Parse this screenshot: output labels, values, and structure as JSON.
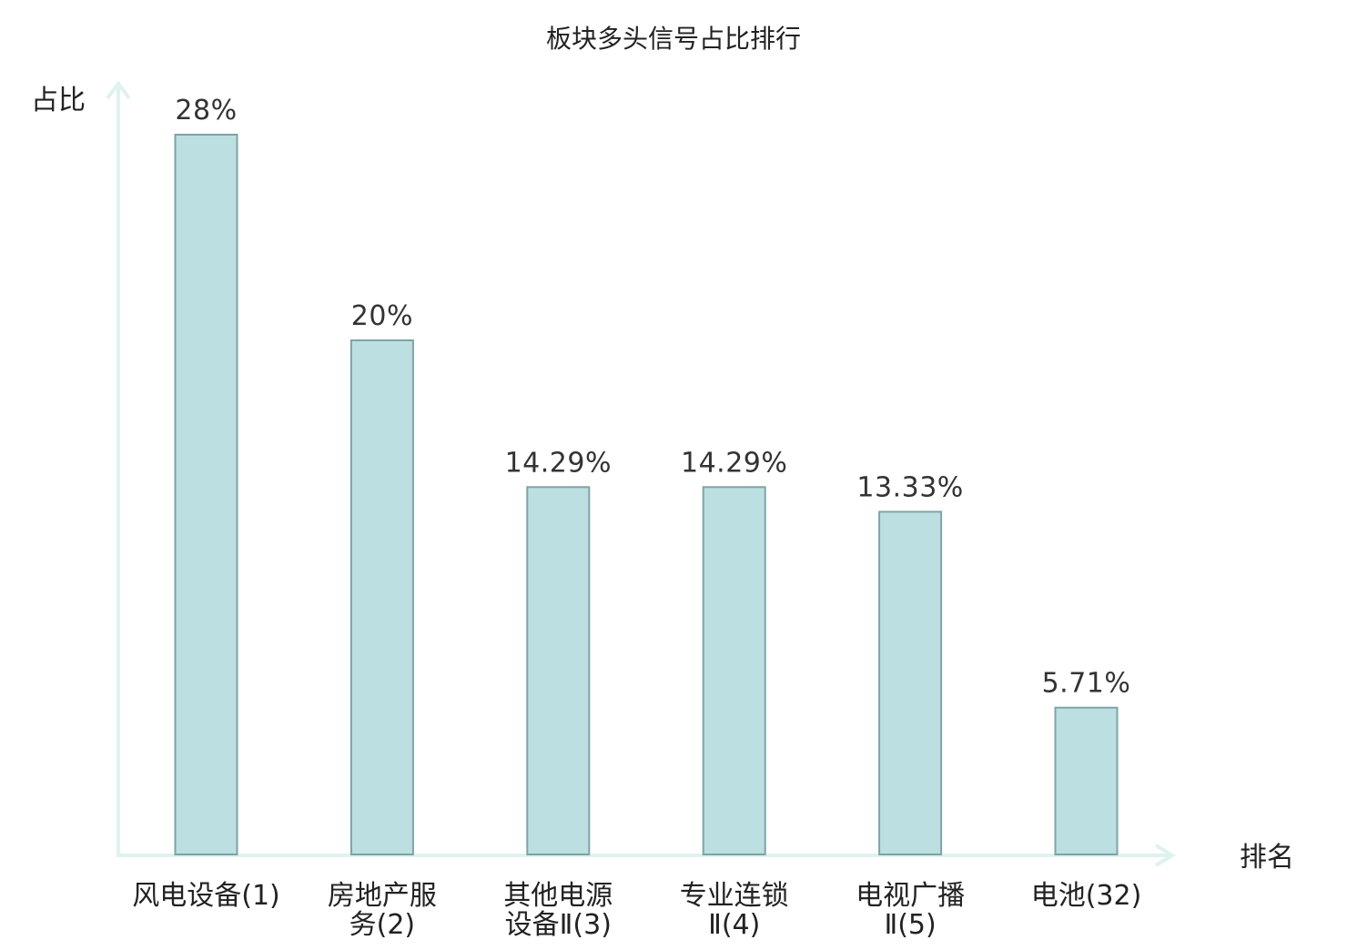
{
  "chart_data": {
    "type": "bar",
    "title": "板块多头信号占比排行",
    "xlabel": "排名",
    "ylabel": "占比",
    "ylim": [
      0,
      30
    ],
    "grid": false,
    "categories": [
      {
        "lines": [
          "风电设备(1)"
        ],
        "highlight": false
      },
      {
        "lines": [
          "房地产服",
          "务(2)"
        ],
        "highlight": false
      },
      {
        "lines": [
          "其他电源",
          "设备Ⅱ(3)"
        ],
        "highlight": false
      },
      {
        "lines": [
          "专业连锁",
          "Ⅱ(4)"
        ],
        "highlight": false
      },
      {
        "lines": [
          "电视广播",
          "Ⅱ(5)"
        ],
        "highlight": false
      },
      {
        "lines": [
          "电池(32)"
        ],
        "highlight": true
      }
    ],
    "values": [
      28,
      20,
      14.29,
      14.29,
      13.33,
      5.71
    ],
    "value_labels": [
      "28%",
      "20%",
      "14.29%",
      "14.29%",
      "13.33%",
      "5.71%"
    ],
    "colors": {
      "bar_fill": "#bce0e2",
      "bar_stroke": "#7fa3a6",
      "axis": "#dff2ef",
      "highlight_text": "#e8141b"
    }
  }
}
